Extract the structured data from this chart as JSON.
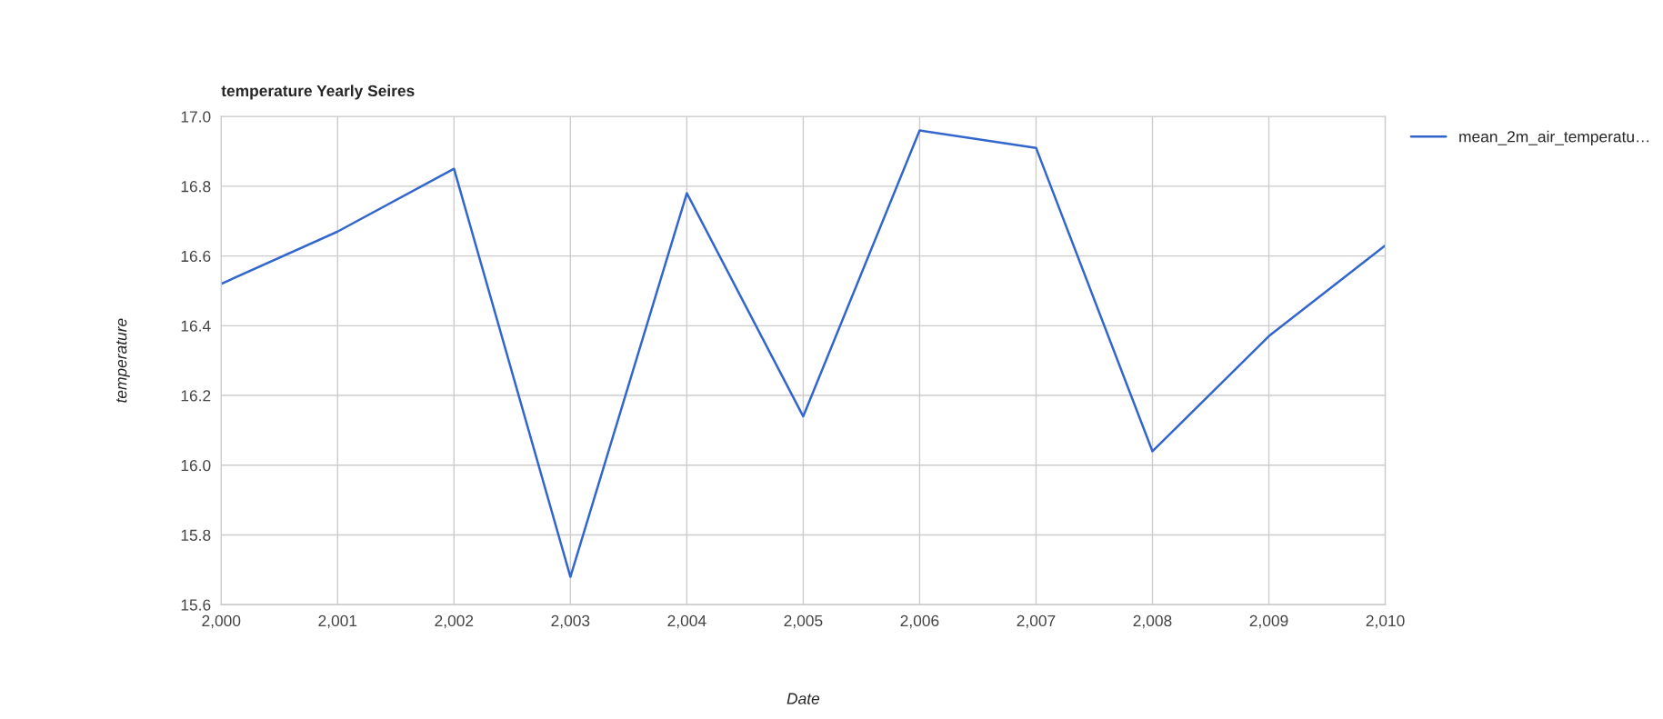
{
  "chart_data": {
    "type": "line",
    "title": "temperature Yearly Seires",
    "xlabel": "Date",
    "ylabel": "temperature",
    "x": [
      2000,
      2001,
      2002,
      2003,
      2004,
      2005,
      2006,
      2007,
      2008,
      2009,
      2010
    ],
    "series": [
      {
        "name": "mean_2m_air_temperatu…",
        "color": "#3366cc",
        "values": [
          16.52,
          16.67,
          16.85,
          15.68,
          16.78,
          16.14,
          16.96,
          16.91,
          16.04,
          16.37,
          16.63
        ]
      }
    ],
    "xlim": [
      2000,
      2010
    ],
    "xticks": [
      {
        "value": 2000,
        "label": "2,000"
      },
      {
        "value": 2001,
        "label": "2,001"
      },
      {
        "value": 2002,
        "label": "2,002"
      },
      {
        "value": 2003,
        "label": "2,003"
      },
      {
        "value": 2004,
        "label": "2,004"
      },
      {
        "value": 2005,
        "label": "2,005"
      },
      {
        "value": 2006,
        "label": "2,006"
      },
      {
        "value": 2007,
        "label": "2,007"
      },
      {
        "value": 2008,
        "label": "2,008"
      },
      {
        "value": 2009,
        "label": "2,009"
      },
      {
        "value": 2010,
        "label": "2,010"
      }
    ],
    "ylim": [
      15.6,
      17.0
    ],
    "yticks": [
      {
        "value": 15.6,
        "label": "15.6"
      },
      {
        "value": 15.8,
        "label": "15.8"
      },
      {
        "value": 16.0,
        "label": "16.0"
      },
      {
        "value": 16.2,
        "label": "16.2"
      },
      {
        "value": 16.4,
        "label": "16.4"
      },
      {
        "value": 16.6,
        "label": "16.6"
      },
      {
        "value": 16.8,
        "label": "16.8"
      },
      {
        "value": 17.0,
        "label": "17.0"
      }
    ],
    "grid": true,
    "legend": "top right",
    "marker": "none",
    "line_style": "solid"
  }
}
